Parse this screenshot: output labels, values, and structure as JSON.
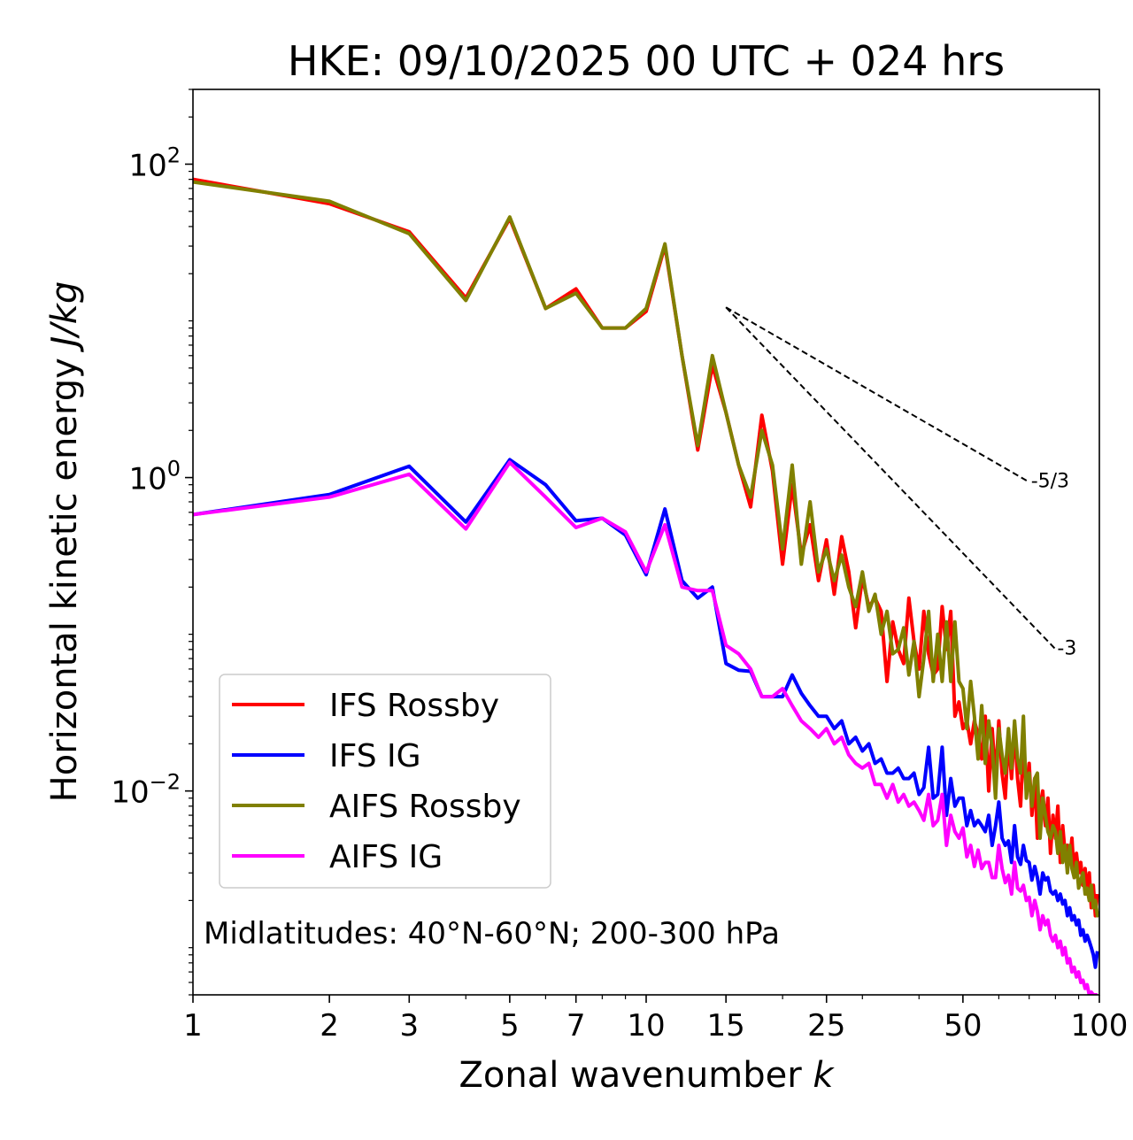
{
  "chart_data": {
    "type": "line",
    "title": "HKE: 09/10/2025 00 UTC + 024 hrs",
    "xlabel_text": "Zonal wavenumber ",
    "xlabel_var": "k",
    "ylabel_text": "Horizontal kinetic energy ",
    "ylabel_unit": "J/kg",
    "xscale": "log",
    "yscale": "log",
    "xlim": [
      1,
      100
    ],
    "ylim": [
      0.0005,
      300
    ],
    "xticks": [
      {
        "value": 1,
        "label": "1"
      },
      {
        "value": 2,
        "label": "2"
      },
      {
        "value": 3,
        "label": "3"
      },
      {
        "value": 5,
        "label": "5"
      },
      {
        "value": 7,
        "label": "7"
      },
      {
        "value": 10,
        "label": "10"
      },
      {
        "value": 15,
        "label": "15"
      },
      {
        "value": 25,
        "label": "25"
      },
      {
        "value": 50,
        "label": "50"
      },
      {
        "value": 100,
        "label": "100"
      }
    ],
    "yticks": [
      {
        "value": 100,
        "base": "10",
        "exp": "2"
      },
      {
        "value": 1,
        "base": "10",
        "exp": "0"
      },
      {
        "value": 0.01,
        "base": "10",
        "exp": "−2"
      }
    ],
    "annotation": "Midlatitudes: 40°N-60°N; 200-300 hPa",
    "legend_position": "lower-left",
    "reference_lines": [
      {
        "label": "-5/3",
        "slope": -1.6667,
        "x_start": 15,
        "x_end": 70,
        "y_start": 12.2
      },
      {
        "label": "-3",
        "slope": -3,
        "x_start": 15,
        "x_end": 80,
        "y_start": 12.2
      }
    ],
    "series": [
      {
        "name": "IFS Rossby",
        "color": "#ff0000",
        "x_start": 1,
        "values": [
          80,
          56,
          37,
          14,
          45,
          12,
          16,
          9,
          9,
          11.5,
          30,
          6,
          1.5,
          5.2,
          2.6,
          1.2,
          0.65,
          2.5,
          1.1,
          0.28,
          0.9,
          0.32,
          0.5,
          0.22,
          0.4,
          0.18,
          0.42,
          0.25,
          0.11,
          0.23,
          0.15,
          0.17,
          0.14,
          0.05,
          0.12,
          0.08,
          0.065,
          0.17,
          0.09,
          0.06,
          0.14,
          0.075,
          0.055,
          0.06,
          0.15,
          0.08,
          0.14,
          0.03,
          0.037,
          0.025,
          0.028,
          0.02,
          0.028,
          0.023,
          0.016,
          0.03,
          0.01,
          0.025,
          0.012,
          0.028,
          0.013,
          0.009,
          0.022,
          0.012,
          0.025,
          0.012,
          0.008,
          0.02,
          0.01,
          0.015,
          0.007,
          0.012,
          0.005,
          0.008,
          0.01,
          0.006,
          0.009,
          0.004,
          0.007,
          0.005,
          0.008,
          0.0035,
          0.006,
          0.004,
          0.0045,
          0.0035,
          0.005,
          0.0028,
          0.004,
          0.003,
          0.0035,
          0.0025,
          0.0032,
          0.0022,
          0.003,
          0.0018,
          0.0025,
          0.0016,
          0.0022
        ]
      },
      {
        "name": "IFS IG",
        "color": "#0000ff",
        "x_start": 1,
        "values": [
          0.58,
          0.78,
          1.18,
          0.52,
          1.3,
          0.9,
          0.53,
          0.55,
          0.43,
          0.24,
          0.63,
          0.22,
          0.17,
          0.2,
          0.065,
          0.059,
          0.058,
          0.04,
          0.04,
          0.04,
          0.055,
          0.042,
          0.035,
          0.03,
          0.03,
          0.025,
          0.028,
          0.02,
          0.022,
          0.018,
          0.02,
          0.015,
          0.016,
          0.013,
          0.013,
          0.014,
          0.012,
          0.012,
          0.013,
          0.0095,
          0.0105,
          0.019,
          0.009,
          0.0095,
          0.019,
          0.007,
          0.012,
          0.008,
          0.009,
          0.009,
          0.006,
          0.0075,
          0.006,
          0.0065,
          0.006,
          0.0055,
          0.007,
          0.0045,
          0.006,
          0.0085,
          0.005,
          0.0045,
          0.0048,
          0.0035,
          0.006,
          0.0038,
          0.0034,
          0.0045,
          0.0036,
          0.0035,
          0.0027,
          0.0033,
          0.0028,
          0.0022,
          0.003,
          0.0027,
          0.0028,
          0.0023,
          0.0022,
          0.0023,
          0.002,
          0.0022,
          0.0019,
          0.002,
          0.0016,
          0.0018,
          0.0015,
          0.0016,
          0.0014,
          0.0015,
          0.0012,
          0.0013,
          0.0011,
          0.0012,
          0.0011,
          0.001,
          0.0009,
          0.00075,
          0.00095
        ]
      },
      {
        "name": "AIFS Rossby",
        "color": "#808000",
        "x_start": 1,
        "values": [
          77,
          58,
          36,
          13.5,
          46,
          12,
          15,
          9,
          9,
          12,
          31,
          6,
          1.6,
          6,
          2.6,
          1.2,
          0.75,
          2,
          1.2,
          0.35,
          1.2,
          0.28,
          0.7,
          0.25,
          0.35,
          0.22,
          0.32,
          0.2,
          0.15,
          0.25,
          0.14,
          0.18,
          0.1,
          0.14,
          0.075,
          0.08,
          0.11,
          0.055,
          0.09,
          0.04,
          0.07,
          0.14,
          0.05,
          0.1,
          0.05,
          0.12,
          0.05,
          0.12,
          0.05,
          0.045,
          0.025,
          0.05,
          0.03,
          0.016,
          0.035,
          0.015,
          0.028,
          0.019,
          0.009,
          0.025,
          0.017,
          0.013,
          0.025,
          0.014,
          0.028,
          0.016,
          0.013,
          0.03,
          0.009,
          0.013,
          0.008,
          0.012,
          0.013,
          0.005,
          0.009,
          0.007,
          0.0055,
          0.005,
          0.006,
          0.0055,
          0.004,
          0.0055,
          0.0035,
          0.0045,
          0.003,
          0.0045,
          0.0032,
          0.0028,
          0.0035,
          0.0024,
          0.0027,
          0.003,
          0.0022,
          0.0024,
          0.002,
          0.0025,
          0.0018,
          0.002,
          0.0016,
          0.0017
        ]
      },
      {
        "name": "AIFS IG",
        "color": "#ff00ff",
        "x_start": 1,
        "values": [
          0.58,
          0.75,
          1.05,
          0.47,
          1.25,
          0.75,
          0.48,
          0.55,
          0.45,
          0.25,
          0.5,
          0.2,
          0.19,
          0.19,
          0.085,
          0.075,
          0.06,
          0.04,
          0.04,
          0.045,
          0.035,
          0.028,
          0.025,
          0.022,
          0.025,
          0.02,
          0.022,
          0.017,
          0.015,
          0.014,
          0.015,
          0.011,
          0.011,
          0.009,
          0.011,
          0.0085,
          0.0095,
          0.008,
          0.0085,
          0.0075,
          0.0065,
          0.0095,
          0.006,
          0.0065,
          0.0095,
          0.0045,
          0.007,
          0.0055,
          0.005,
          0.0058,
          0.0038,
          0.0045,
          0.0033,
          0.0042,
          0.0032,
          0.0035,
          0.0035,
          0.0028,
          0.0028,
          0.0045,
          0.0032,
          0.0026,
          0.0029,
          0.0022,
          0.0035,
          0.0024,
          0.0023,
          0.0025,
          0.002,
          0.0021,
          0.0016,
          0.002,
          0.0017,
          0.0013,
          0.0016,
          0.0014,
          0.0015,
          0.0012,
          0.0011,
          0.0012,
          0.001,
          0.0011,
          0.0009,
          0.001,
          0.0008,
          0.00085,
          0.0007,
          0.00075,
          0.00065,
          0.0007,
          0.0006,
          0.00062,
          0.00055,
          0.00058,
          0.0005,
          0.00052,
          0.0005,
          0.0005,
          0.0005
        ]
      }
    ]
  }
}
